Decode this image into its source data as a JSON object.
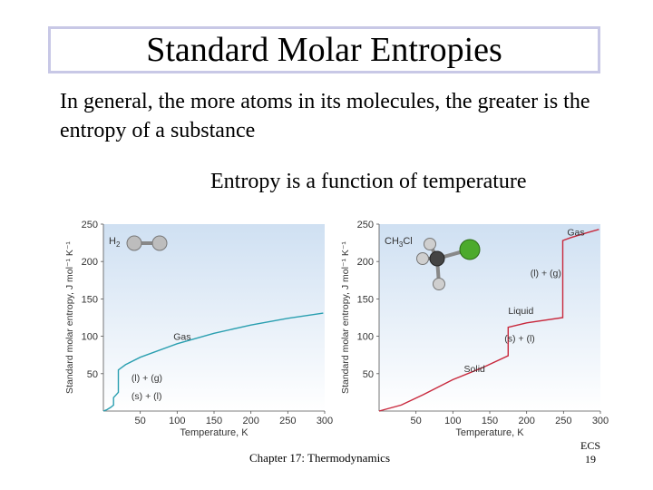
{
  "slide": {
    "title": "Standard Molar Entropies",
    "body": "In general, the more atoms in its molecules, the greater is the entropy of a substance",
    "subheading": "Entropy is a function of temperature",
    "footer": "Chapter 17: Thermodynamics",
    "corner_label": "ECS",
    "page_number": "19"
  },
  "chart_data": [
    {
      "type": "line",
      "molecule": "H2",
      "xlabel": "Temperature, K",
      "ylabel": "Standard molar entropy, J mol⁻¹ K⁻¹",
      "xlim": [
        0,
        300
      ],
      "ylim": [
        0,
        250
      ],
      "x_ticks": [
        50,
        100,
        150,
        200,
        250,
        300
      ],
      "y_ticks": [
        50,
        100,
        150,
        200,
        250
      ],
      "line_color": "#2a9fb0",
      "series": [
        {
          "x": [
            0,
            5,
            10,
            13.8,
            13.8,
            20.3,
            20.3,
            30,
            50,
            100,
            150,
            200,
            250,
            298
          ],
          "y": [
            0,
            2,
            5,
            8,
            18,
            25,
            55,
            62,
            72,
            90,
            104,
            115,
            124,
            131
          ]
        }
      ],
      "annotations": [
        {
          "text": "Gas",
          "x": 95,
          "y": 95
        },
        {
          "text": "(l) + (g)",
          "x": 38,
          "y": 40
        },
        {
          "text": "(s) + (l)",
          "x": 38,
          "y": 16
        }
      ]
    },
    {
      "type": "line",
      "molecule": "CH3Cl",
      "xlabel": "Temperature, K",
      "ylabel": "Standard molar entropy, J mol⁻¹ K⁻¹",
      "xlim": [
        0,
        300
      ],
      "ylim": [
        0,
        250
      ],
      "x_ticks": [
        50,
        100,
        150,
        200,
        250,
        300
      ],
      "y_ticks": [
        50,
        100,
        150,
        200,
        250
      ],
      "line_color": "#c8283c",
      "series": [
        {
          "x": [
            0,
            30,
            60,
            100,
            140,
            175,
            175,
            200,
            249,
            249,
            260,
            280,
            298
          ],
          "y": [
            0,
            8,
            22,
            42,
            58,
            74,
            112,
            118,
            125,
            228,
            232,
            238,
            243
          ]
        }
      ],
      "annotations": [
        {
          "text": "Gas",
          "x": 255,
          "y": 235
        },
        {
          "text": "(l) + (g)",
          "x": 205,
          "y": 180
        },
        {
          "text": "Liquid",
          "x": 175,
          "y": 130
        },
        {
          "text": "(s) + (l)",
          "x": 170,
          "y": 93
        },
        {
          "text": "Solid",
          "x": 115,
          "y": 52
        }
      ]
    }
  ]
}
